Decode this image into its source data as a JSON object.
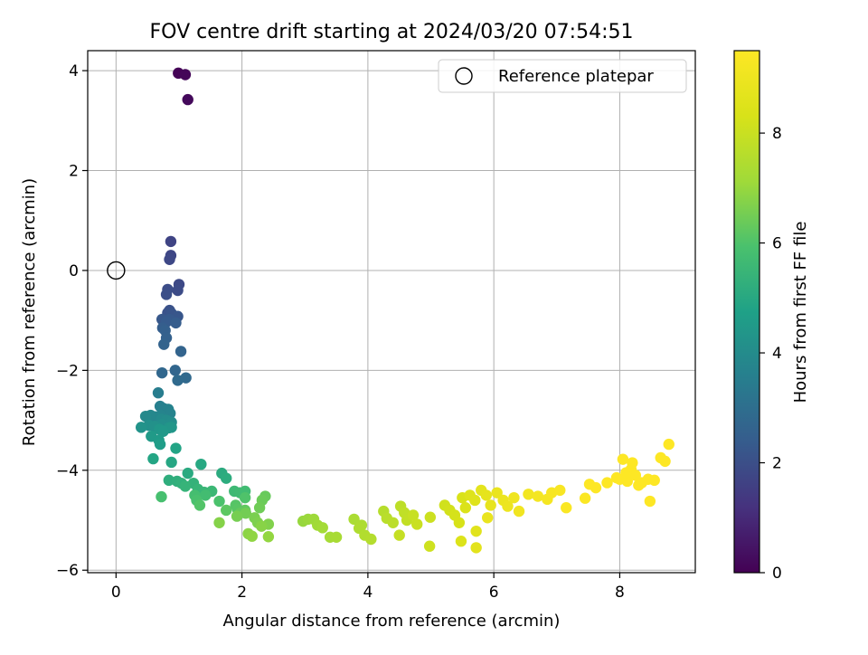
{
  "chart_data": {
    "type": "scatter",
    "title": "FOV centre drift starting at 2024/03/20 07:54:51",
    "xlabel": "Angular distance from reference (arcmin)",
    "ylabel": "Rotation from reference (arcmin)",
    "xlim": [
      -0.45,
      9.2
    ],
    "ylim": [
      -6.05,
      4.4
    ],
    "xticks": [
      0,
      2,
      4,
      6,
      8
    ],
    "yticks": [
      -6,
      -4,
      -2,
      0,
      2,
      4
    ],
    "xtick_labels": [
      "0",
      "2",
      "4",
      "6",
      "8"
    ],
    "ytick_labels": [
      "−6",
      "−4",
      "−2",
      "0",
      "2",
      "4"
    ],
    "grid": true,
    "legend": {
      "position": "top-right",
      "entries": [
        "Reference platepar"
      ]
    },
    "reference_point": {
      "x": 0,
      "y": 0
    },
    "colorbar": {
      "label": "Hours from first FF file",
      "colormap": "viridis",
      "range": [
        0,
        9.5
      ],
      "ticks": [
        0,
        2,
        4,
        6,
        8
      ],
      "tick_labels": [
        "0",
        "2",
        "4",
        "6",
        "8"
      ]
    },
    "series": [
      {
        "columns": [
          "x",
          "y",
          "hours"
        ],
        "points": [
          [
            0.99,
            3.95,
            0.05
          ],
          [
            1.1,
            3.92,
            0.12
          ],
          [
            1.14,
            3.42,
            0.2
          ],
          [
            0.87,
            0.58,
            1.7
          ],
          [
            0.87,
            0.3,
            1.75
          ],
          [
            0.85,
            0.22,
            1.8
          ],
          [
            1.0,
            -0.28,
            1.85
          ],
          [
            0.98,
            -0.4,
            1.9
          ],
          [
            0.82,
            -0.38,
            1.95
          ],
          [
            0.8,
            -0.48,
            2.0
          ],
          [
            0.85,
            -0.8,
            2.05
          ],
          [
            0.82,
            -0.85,
            2.1
          ],
          [
            0.88,
            -0.86,
            2.15
          ],
          [
            0.98,
            -0.92,
            2.2
          ],
          [
            0.73,
            -0.98,
            2.25
          ],
          [
            0.85,
            -0.98,
            2.3
          ],
          [
            0.8,
            -1.03,
            2.35
          ],
          [
            0.95,
            -1.05,
            2.4
          ],
          [
            0.74,
            -1.15,
            2.45
          ],
          [
            0.78,
            -1.2,
            2.5
          ],
          [
            0.8,
            -1.35,
            2.55
          ],
          [
            0.76,
            -1.48,
            2.6
          ],
          [
            1.03,
            -1.62,
            2.65
          ],
          [
            0.94,
            -2.0,
            2.7
          ],
          [
            0.73,
            -2.05,
            2.75
          ],
          [
            1.11,
            -2.15,
            2.8
          ],
          [
            0.98,
            -2.2,
            2.85
          ],
          [
            0.67,
            -2.45,
            3.5
          ],
          [
            0.7,
            -2.72,
            3.55
          ],
          [
            0.75,
            -2.76,
            3.6
          ],
          [
            0.83,
            -2.78,
            3.65
          ],
          [
            0.86,
            -2.86,
            3.7
          ],
          [
            0.71,
            -2.9,
            3.75
          ],
          [
            0.62,
            -2.93,
            3.8
          ],
          [
            0.55,
            -2.9,
            3.85
          ],
          [
            0.47,
            -2.92,
            3.9
          ],
          [
            0.72,
            -2.98,
            3.95
          ],
          [
            0.8,
            -3.0,
            4.0
          ],
          [
            0.88,
            -3.04,
            4.05
          ],
          [
            0.73,
            -3.08,
            4.1
          ],
          [
            0.52,
            -3.1,
            4.15
          ],
          [
            0.61,
            -3.12,
            4.2
          ],
          [
            0.4,
            -3.14,
            4.25
          ],
          [
            0.84,
            -3.15,
            4.3
          ],
          [
            0.88,
            -3.14,
            4.35
          ],
          [
            0.69,
            -3.18,
            4.4
          ],
          [
            0.75,
            -3.22,
            4.45
          ],
          [
            0.56,
            -3.32,
            4.5
          ],
          [
            0.68,
            -3.4,
            4.55
          ],
          [
            0.7,
            -3.48,
            4.6
          ],
          [
            0.95,
            -3.56,
            4.85
          ],
          [
            0.59,
            -3.77,
            4.9
          ],
          [
            0.88,
            -3.84,
            4.95
          ],
          [
            1.35,
            -3.88,
            5.0
          ],
          [
            1.14,
            -4.06,
            5.05
          ],
          [
            1.68,
            -4.06,
            5.1
          ],
          [
            1.75,
            -4.16,
            5.15
          ],
          [
            0.84,
            -4.2,
            5.2
          ],
          [
            0.97,
            -4.22,
            5.25
          ],
          [
            1.04,
            -4.26,
            5.3
          ],
          [
            1.23,
            -4.26,
            5.35
          ],
          [
            1.1,
            -4.32,
            5.4
          ],
          [
            1.3,
            -4.38,
            5.45
          ],
          [
            1.4,
            -4.44,
            5.5
          ],
          [
            1.52,
            -4.42,
            5.55
          ],
          [
            1.88,
            -4.42,
            5.6
          ],
          [
            1.97,
            -4.45,
            5.65
          ],
          [
            2.05,
            -4.42,
            5.7
          ],
          [
            1.42,
            -4.5,
            5.75
          ],
          [
            1.25,
            -4.5,
            5.8
          ],
          [
            0.72,
            -4.53,
            5.85
          ],
          [
            1.28,
            -4.6,
            5.9
          ],
          [
            1.64,
            -4.62,
            5.95
          ],
          [
            2.05,
            -4.55,
            6.0
          ],
          [
            1.33,
            -4.7,
            6.05
          ],
          [
            1.9,
            -4.7,
            6.1
          ],
          [
            1.93,
            -4.78,
            6.15
          ],
          [
            1.75,
            -4.8,
            6.2
          ],
          [
            2.05,
            -4.8,
            6.25
          ],
          [
            1.97,
            -4.86,
            6.3
          ],
          [
            2.37,
            -4.52,
            6.35
          ],
          [
            2.32,
            -4.6,
            6.4
          ],
          [
            2.28,
            -4.75,
            6.45
          ],
          [
            2.06,
            -4.86,
            6.5
          ],
          [
            1.92,
            -4.92,
            6.55
          ],
          [
            2.2,
            -4.95,
            6.6
          ],
          [
            2.25,
            -5.05,
            6.65
          ],
          [
            2.42,
            -5.08,
            6.7
          ],
          [
            1.64,
            -5.05,
            6.75
          ],
          [
            2.31,
            -5.12,
            6.8
          ],
          [
            2.1,
            -5.27,
            6.85
          ],
          [
            2.16,
            -5.32,
            6.9
          ],
          [
            2.42,
            -5.33,
            6.95
          ],
          [
            2.97,
            -5.02,
            7.0
          ],
          [
            3.05,
            -4.98,
            7.05
          ],
          [
            3.14,
            -4.98,
            7.1
          ],
          [
            3.2,
            -5.1,
            7.15
          ],
          [
            3.28,
            -5.15,
            7.2
          ],
          [
            3.4,
            -5.34,
            7.25
          ],
          [
            3.5,
            -5.34,
            7.3
          ],
          [
            3.78,
            -4.98,
            7.35
          ],
          [
            3.9,
            -5.1,
            7.4
          ],
          [
            3.86,
            -5.16,
            7.45
          ],
          [
            3.95,
            -5.3,
            7.5
          ],
          [
            4.05,
            -5.38,
            7.55
          ],
          [
            4.25,
            -4.82,
            7.6
          ],
          [
            4.3,
            -4.96,
            7.65
          ],
          [
            4.4,
            -5.05,
            7.7
          ],
          [
            4.52,
            -4.72,
            7.75
          ],
          [
            4.58,
            -4.85,
            7.8
          ],
          [
            4.62,
            -5.0,
            7.85
          ],
          [
            4.5,
            -5.3,
            7.9
          ],
          [
            4.72,
            -4.9,
            7.95
          ],
          [
            4.78,
            -5.08,
            8.0
          ],
          [
            4.99,
            -4.94,
            8.05
          ],
          [
            4.98,
            -5.52,
            8.1
          ],
          [
            5.22,
            -4.7,
            8.15
          ],
          [
            5.3,
            -4.8,
            8.2
          ],
          [
            5.38,
            -4.9,
            8.25
          ],
          [
            5.45,
            -5.05,
            8.3
          ],
          [
            5.5,
            -4.55,
            8.35
          ],
          [
            5.55,
            -4.75,
            8.4
          ],
          [
            5.48,
            -5.42,
            8.45
          ],
          [
            5.62,
            -4.5,
            8.5
          ],
          [
            5.7,
            -4.6,
            8.55
          ],
          [
            5.72,
            -5.22,
            8.6
          ],
          [
            5.72,
            -5.55,
            8.65
          ],
          [
            5.8,
            -4.4,
            8.7
          ],
          [
            5.88,
            -4.5,
            8.75
          ],
          [
            5.95,
            -4.7,
            8.8
          ],
          [
            5.9,
            -4.95,
            8.85
          ],
          [
            6.05,
            -4.45,
            8.9
          ],
          [
            6.15,
            -4.6,
            8.95
          ],
          [
            6.22,
            -4.72,
            9.0
          ],
          [
            6.32,
            -4.55,
            9.05
          ],
          [
            6.4,
            -4.82,
            9.1
          ],
          [
            6.55,
            -4.48,
            9.15
          ],
          [
            6.7,
            -4.52,
            9.2
          ],
          [
            6.85,
            -4.58,
            9.25
          ],
          [
            6.92,
            -4.45,
            9.3
          ],
          [
            7.05,
            -4.4,
            9.35
          ],
          [
            7.15,
            -4.75,
            9.4
          ],
          [
            7.45,
            -4.56,
            9.45
          ],
          [
            7.52,
            -4.28,
            9.5
          ],
          [
            7.62,
            -4.35,
            9.55
          ],
          [
            7.95,
            -4.15,
            9.6
          ],
          [
            8.05,
            -3.78,
            9.65
          ],
          [
            8.12,
            -4.22,
            9.7
          ],
          [
            8.18,
            -3.98,
            9.75
          ],
          [
            8.25,
            -4.1,
            9.8
          ],
          [
            8.3,
            -4.3,
            9.85
          ],
          [
            8.45,
            -4.18,
            9.9
          ],
          [
            8.48,
            -4.62,
            9.95
          ],
          [
            8.65,
            -3.75,
            10.0
          ],
          [
            8.72,
            -3.82,
            10.0
          ],
          [
            8.78,
            -3.48,
            10.0
          ],
          [
            7.8,
            -4.25,
            9.58
          ],
          [
            8.0,
            -4.18,
            9.62
          ],
          [
            8.1,
            -4.05,
            9.68
          ],
          [
            8.2,
            -3.85,
            9.72
          ],
          [
            8.35,
            -4.25,
            9.82
          ],
          [
            8.55,
            -4.2,
            9.92
          ]
        ]
      }
    ]
  }
}
